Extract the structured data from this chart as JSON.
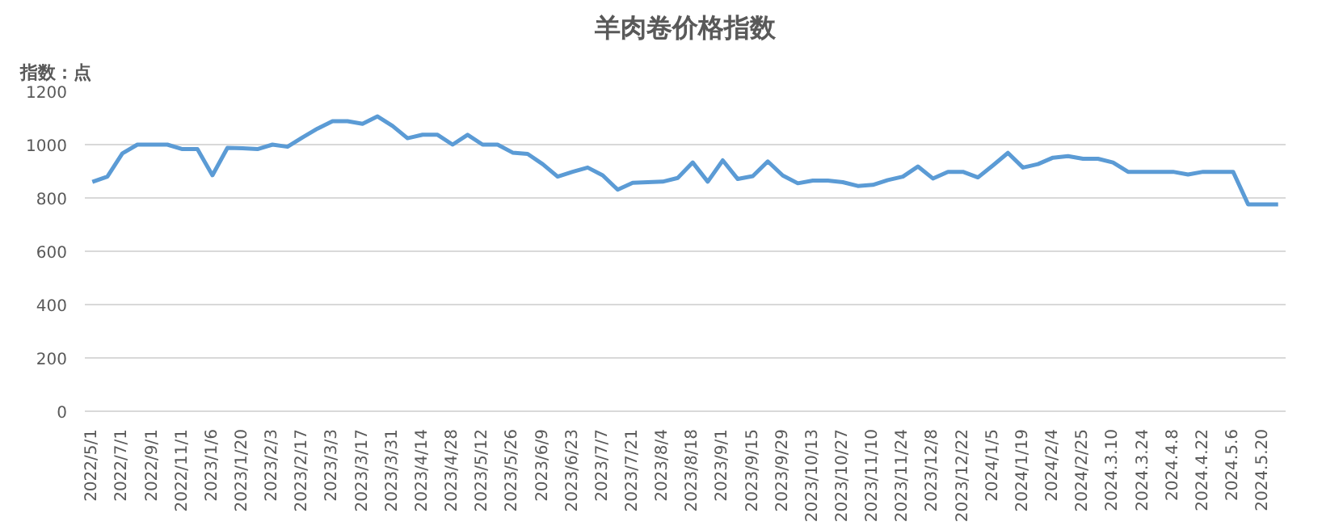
{
  "chart_data": {
    "type": "line",
    "title": "羊肉卷价格指数",
    "ylabel": "指数：点",
    "categories": [
      "2022/5/1",
      null,
      "2022/7/1",
      null,
      "2022/9/1",
      null,
      "2022/11/1",
      null,
      "2023/1/6",
      null,
      "2023/1/20",
      null,
      "2023/2/3",
      null,
      "2023/2/17",
      null,
      "2023/3/3",
      null,
      "2023/3/17",
      null,
      "2023/3/31",
      null,
      "2023/4/14",
      null,
      "2023/4/28",
      null,
      "2023/5/12",
      null,
      "2023/5/26",
      null,
      "2023/6/9",
      null,
      "2023/6/23",
      null,
      "2023/7/7",
      null,
      "2023/7/21",
      null,
      "2023/8/4",
      null,
      "2023/8/18",
      null,
      "2023/9/1",
      null,
      "2023/9/15",
      null,
      "2023/9/29",
      null,
      "2023/10/13",
      null,
      "2023/10/27",
      null,
      "2023/11/10",
      null,
      "2023/11/24",
      null,
      "2023/12/8",
      null,
      "2023/12/22",
      null,
      "2024/1/5",
      null,
      "2024/1/19",
      null,
      "2024/2/4",
      null,
      "2024/2/25",
      null,
      "2024.3.10",
      null,
      "2024.3.24",
      null,
      "2024.4.8",
      null,
      "2024.4.22",
      null,
      "2024.5.6",
      null,
      "2024.5.20",
      null
    ],
    "series": [
      {
        "color": "#5b9bd5",
        "values": [
          860,
          880,
          967,
          1000,
          1000,
          1000,
          983,
          983,
          885,
          988,
          986,
          983,
          1000,
          992,
          1027,
          1060,
          1088,
          1088,
          1078,
          1106,
          1070,
          1024,
          1037,
          1037,
          1000,
          1037,
          1000,
          1000,
          970,
          965,
          927,
          880,
          898,
          914,
          885,
          831,
          857,
          859,
          861,
          875,
          933,
          861,
          941,
          871,
          882,
          937,
          884,
          855,
          865,
          865,
          859,
          845,
          849,
          867,
          880,
          918,
          873,
          898,
          898,
          877,
          922,
          969,
          914,
          927,
          951,
          957,
          947,
          947,
          933,
          898,
          898,
          898,
          898,
          888,
          898,
          898,
          898,
          776,
          776,
          776
        ]
      }
    ],
    "ylim": [
      0,
      1200
    ],
    "yticks": [
      0,
      200,
      400,
      600,
      800,
      1000,
      1200
    ],
    "grid": "y",
    "marker": "none",
    "line_style": "solid"
  }
}
